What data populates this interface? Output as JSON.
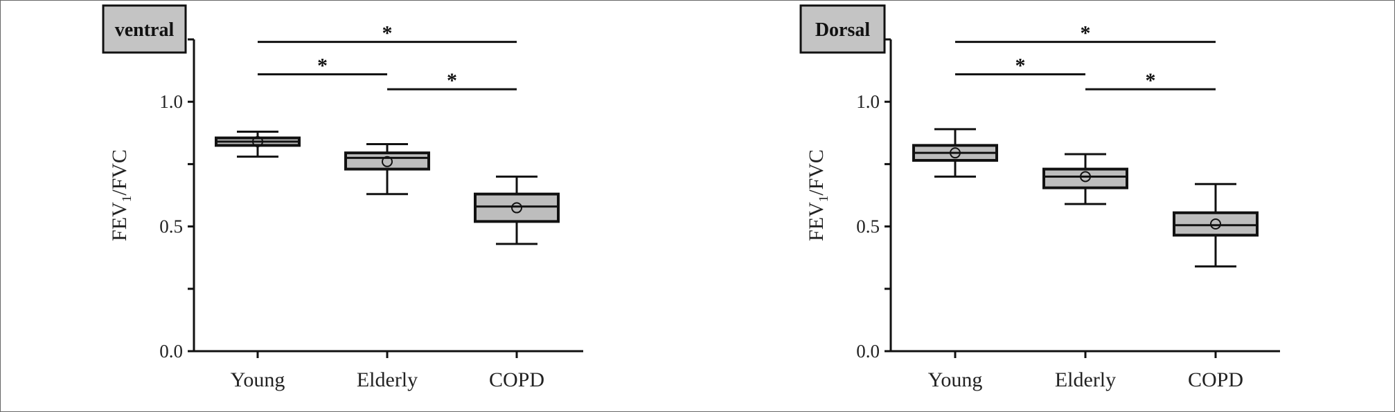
{
  "chart_data": [
    {
      "type": "box",
      "panel_label": "ventral",
      "ylabel": "FEV",
      "ylabel_sub": "1",
      "ylabel_suffix": "/FVC",
      "ylim": [
        0.0,
        1.25
      ],
      "yticks": [
        0.0,
        0.5,
        1.0
      ],
      "ytick_labels": [
        "0.0",
        "0.5",
        "1.0"
      ],
      "categories": [
        "Young",
        "Elderly",
        "COPD"
      ],
      "boxes": [
        {
          "category": "Young",
          "min": 0.78,
          "q1": 0.825,
          "median": 0.84,
          "q3": 0.855,
          "max": 0.88,
          "mean": 0.84
        },
        {
          "category": "Elderly",
          "min": 0.63,
          "q1": 0.73,
          "median": 0.775,
          "q3": 0.795,
          "max": 0.83,
          "mean": 0.76
        },
        {
          "category": "COPD",
          "min": 0.43,
          "q1": 0.52,
          "median": 0.58,
          "q3": 0.63,
          "max": 0.7,
          "mean": 0.575
        }
      ],
      "significance": [
        {
          "from": "Young",
          "to": "COPD",
          "y": 1.24,
          "label": "*"
        },
        {
          "from": "Young",
          "to": "Elderly",
          "y": 1.11,
          "label": "*"
        },
        {
          "from": "Elderly",
          "to": "COPD",
          "y": 1.05,
          "label": "*"
        }
      ]
    },
    {
      "type": "box",
      "panel_label": "Dorsal",
      "ylabel": "FEV",
      "ylabel_sub": "1",
      "ylabel_suffix": "/FVC",
      "ylim": [
        0.0,
        1.25
      ],
      "yticks": [
        0.0,
        0.5,
        1.0
      ],
      "ytick_labels": [
        "0.0",
        "0.5",
        "1.0"
      ],
      "categories": [
        "Young",
        "Elderly",
        "COPD"
      ],
      "boxes": [
        {
          "category": "Young",
          "min": 0.7,
          "q1": 0.765,
          "median": 0.795,
          "q3": 0.825,
          "max": 0.89,
          "mean": 0.795
        },
        {
          "category": "Elderly",
          "min": 0.59,
          "q1": 0.655,
          "median": 0.7,
          "q3": 0.73,
          "max": 0.79,
          "mean": 0.7
        },
        {
          "category": "COPD",
          "min": 0.34,
          "q1": 0.465,
          "median": 0.505,
          "q3": 0.555,
          "max": 0.67,
          "mean": 0.51
        }
      ],
      "significance": [
        {
          "from": "Young",
          "to": "COPD",
          "y": 1.24,
          "label": "*"
        },
        {
          "from": "Young",
          "to": "Elderly",
          "y": 1.11,
          "label": "*"
        },
        {
          "from": "Elderly",
          "to": "COPD",
          "y": 1.05,
          "label": "*"
        }
      ]
    }
  ],
  "colors": {
    "box_fill": "#bdbdbd",
    "tag_fill": "#c4c4c4",
    "stroke": "#111111"
  }
}
